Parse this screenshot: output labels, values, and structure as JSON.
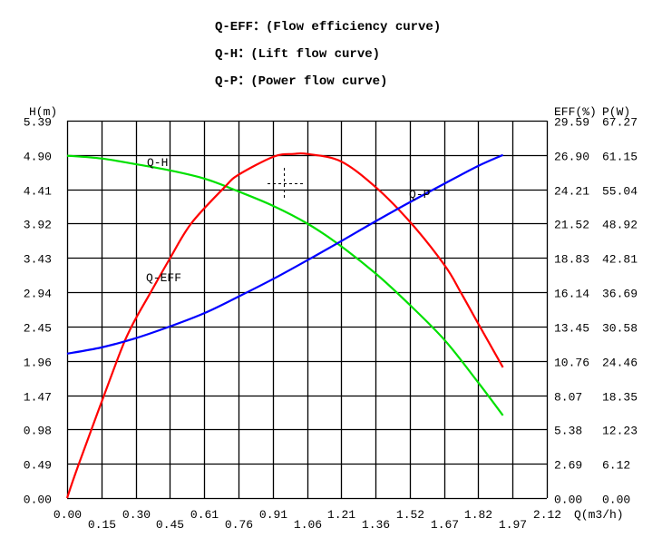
{
  "titles": [
    "Q-EFF：(Flow efficiency curve)",
    "Q-H：(Lift flow curve)",
    "Q-P：(Power flow curve)"
  ],
  "chart_data": {
    "type": "line",
    "grid": true,
    "xlabel": "Q(m3/h)",
    "ylabel_left": "H(m)",
    "ylabel_right_1": "EFF(%)",
    "ylabel_right_2": "P(W)",
    "xlim": [
      0,
      2.12
    ],
    "ylim_left": [
      0,
      5.39
    ],
    "ylim_right_1": [
      0,
      29.59
    ],
    "ylim_right_2": [
      0,
      67.27
    ],
    "x_ticks": [
      "0.00",
      "0.15",
      "0.30",
      "0.45",
      "0.61",
      "0.76",
      "0.91",
      "1.06",
      "1.21",
      "1.36",
      "1.52",
      "1.67",
      "1.82",
      "1.97",
      "2.12"
    ],
    "y_ticks_left": [
      "0.00",
      "0.49",
      "0.98",
      "1.47",
      "1.96",
      "2.45",
      "2.94",
      "3.43",
      "3.92",
      "4.41",
      "4.90",
      "5.39"
    ],
    "y_ticks_right_1": [
      "0.00",
      "2.69",
      "5.38",
      "8.07",
      "10.76",
      "13.45",
      "16.14",
      "18.83",
      "21.52",
      "24.21",
      "26.90",
      "29.59"
    ],
    "y_ticks_right_2": [
      "0.00",
      "6.12",
      "12.23",
      "18.35",
      "24.46",
      "30.58",
      "36.69",
      "42.81",
      "48.92",
      "55.04",
      "61.15",
      "67.27"
    ],
    "series": [
      {
        "name": "Q-H",
        "axis": "left",
        "color": "#00e000",
        "x": [
          0,
          0.151,
          0.303,
          0.454,
          0.609,
          0.757,
          0.913,
          1.062,
          1.193,
          1.366,
          1.514,
          1.67,
          1.817,
          1.926
        ],
        "y": [
          4.89,
          4.85,
          4.77,
          4.68,
          4.56,
          4.38,
          4.17,
          3.92,
          3.64,
          3.2,
          2.76,
          2.25,
          1.65,
          1.18
        ]
      },
      {
        "name": "Q-EFF",
        "axis": "right_1",
        "color": "#ff0000",
        "x": [
          0,
          0.051,
          0.22,
          0.285,
          0.368,
          0.454,
          0.548,
          0.694,
          0.757,
          0.913,
          1.0,
          1.062,
          1.211,
          1.366,
          1.522,
          1.67,
          1.741,
          1.817,
          1.926
        ],
        "y": [
          0,
          2.63,
          10.76,
          13.45,
          16.09,
          18.78,
          21.52,
          24.34,
          25.34,
          26.77,
          26.98,
          26.98,
          26.39,
          24.34,
          21.52,
          18.21,
          16.09,
          13.67,
          10.25
        ]
      },
      {
        "name": "Q-P",
        "axis": "right_2",
        "color": "#0000ff",
        "x": [
          0,
          0.151,
          0.303,
          0.454,
          0.609,
          0.757,
          0.913,
          1.062,
          1.211,
          1.366,
          1.522,
          1.67,
          1.817,
          1.926
        ],
        "y": [
          25.74,
          26.85,
          28.5,
          30.58,
          33.0,
          35.9,
          39.1,
          42.4,
          45.8,
          49.4,
          52.9,
          56.1,
          59.2,
          61.15
        ]
      }
    ]
  }
}
